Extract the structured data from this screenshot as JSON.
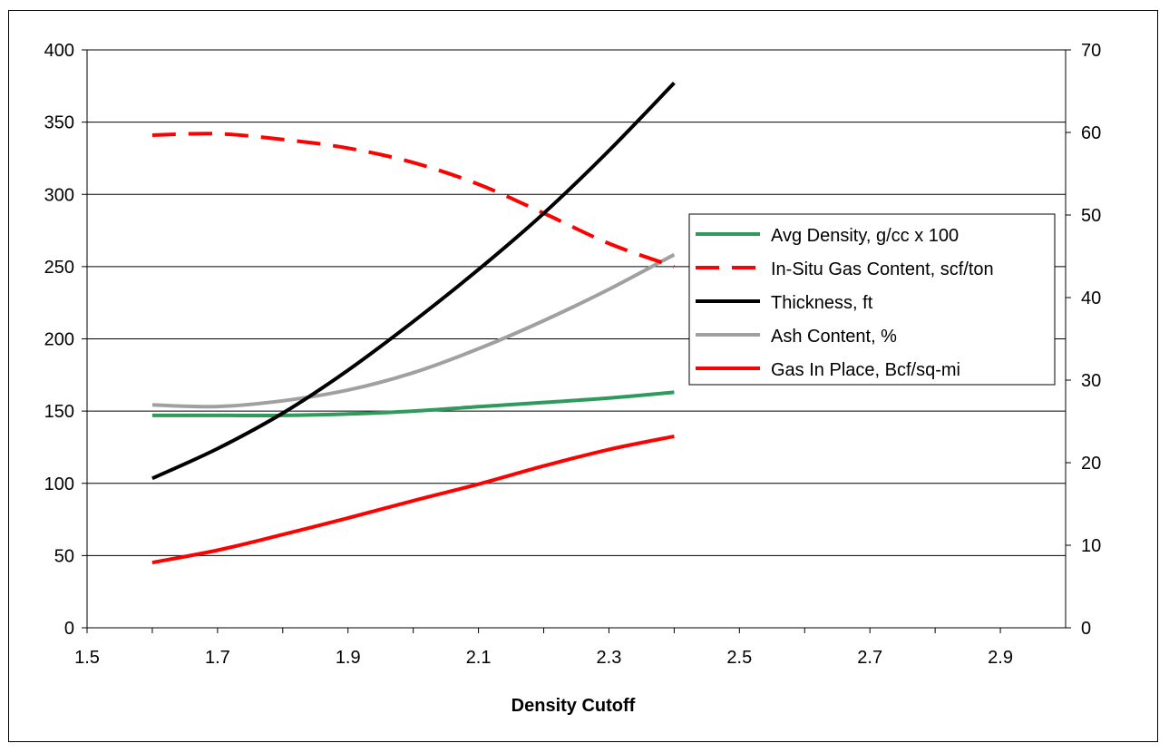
{
  "chart_data": {
    "type": "line",
    "title": "",
    "xlabel": "Density Cutoff",
    "ylabel": "",
    "y2label": "",
    "xlim": [
      1.5,
      3.0
    ],
    "ylim": [
      0,
      400
    ],
    "y2lim": [
      0,
      70
    ],
    "x_ticks": [
      "1.5",
      "1.7",
      "1.9",
      "2.1",
      "2.3",
      "2.5",
      "2.7",
      "2.9"
    ],
    "y_ticks": [
      "0",
      "50",
      "100",
      "150",
      "200",
      "250",
      "300",
      "350",
      "400"
    ],
    "y2_ticks": [
      "0",
      "10",
      "20",
      "30",
      "40",
      "50",
      "60",
      "70"
    ],
    "grid": "horizontal",
    "legend_position": "right",
    "series": [
      {
        "name": "Avg Density, g/cc x 100",
        "axis": "left",
        "color": "#2e9a5c",
        "dash": "solid",
        "x": [
          1.6,
          1.7,
          1.8,
          1.9,
          2.0,
          2.1,
          2.2,
          2.3,
          2.4
        ],
        "y": [
          147,
          147,
          147,
          148,
          150,
          153,
          156,
          159,
          163
        ]
      },
      {
        "name": "In-Situ Gas Content, scf/ton",
        "axis": "left",
        "color": "#ff0000",
        "dash": "dashed",
        "x": [
          1.6,
          1.7,
          1.8,
          1.9,
          2.0,
          2.1,
          2.2,
          2.3,
          2.4
        ],
        "y": [
          341,
          342,
          338,
          332,
          322,
          307,
          287,
          266,
          250
        ]
      },
      {
        "name": "Thickness, ft",
        "axis": "right",
        "color": "#000000",
        "dash": "solid",
        "x": [
          1.6,
          1.7,
          1.8,
          1.9,
          2.0,
          2.1,
          2.2,
          2.3,
          2.4
        ],
        "y": [
          18.1,
          21.7,
          26.0,
          31.2,
          37.1,
          43.4,
          50.2,
          57.8,
          66.0
        ]
      },
      {
        "name": "Ash Content, %",
        "axis": "right",
        "color": "#a0a0a0",
        "dash": "solid",
        "x": [
          1.6,
          1.7,
          1.8,
          1.9,
          2.0,
          2.1,
          2.2,
          2.3,
          2.4
        ],
        "y": [
          27.0,
          26.8,
          27.5,
          28.8,
          30.9,
          33.8,
          37.2,
          41.0,
          45.2
        ]
      },
      {
        "name": "Gas In Place, Bcf/sq-mi",
        "axis": "right",
        "color": "#ff0000",
        "dash": "solid",
        "x": [
          1.6,
          1.7,
          1.8,
          1.9,
          2.0,
          2.1,
          2.2,
          2.3,
          2.4
        ],
        "y": [
          7.9,
          9.4,
          11.3,
          13.3,
          15.4,
          17.4,
          19.6,
          21.6,
          23.2
        ]
      }
    ]
  }
}
